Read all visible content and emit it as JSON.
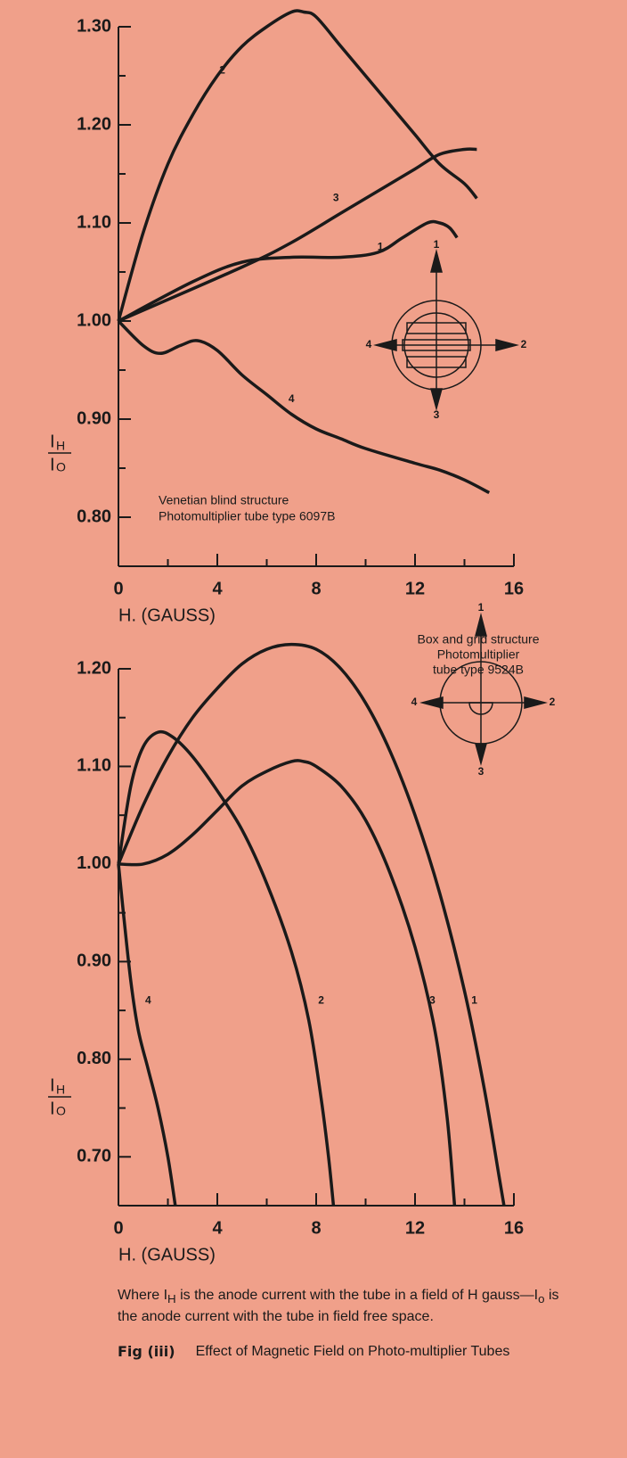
{
  "chart_data": [
    {
      "type": "line",
      "ylabel": {
        "numerator": {
          "base": "I",
          "sub": "H"
        },
        "denominator": {
          "base": "I",
          "sub": "O"
        }
      },
      "xlabel": "H. (GAUSS)",
      "annotation": [
        "Venetian blind structure",
        "Photomultiplier tube type 6097B"
      ],
      "inset_labels": [
        "1",
        "2",
        "3",
        "4"
      ],
      "xlim": [
        0,
        16
      ],
      "xticks": [
        0,
        4,
        8,
        12,
        16
      ],
      "xminor_ticks": [
        2,
        6,
        10,
        14
      ],
      "ylim": [
        0.75,
        1.3
      ],
      "yticks": [
        {
          "value": 0.8,
          "label": "0.80"
        },
        {
          "value": 0.9,
          "label": "0.90"
        },
        {
          "value": 1.0,
          "label": "1.00"
        },
        {
          "value": 1.1,
          "label": "1.10"
        },
        {
          "value": 1.2,
          "label": "1.20"
        },
        {
          "value": 1.3,
          "label": "1.30"
        }
      ],
      "yminor_ticks": [
        0.85,
        0.95,
        1.05,
        1.15,
        1.25
      ],
      "series": [
        {
          "name": "1",
          "color": "#1a1a1a",
          "label_at": [
            10.6,
            1.075
          ],
          "x": [
            0,
            3,
            5,
            7,
            9,
            10.5,
            11.5,
            12.5,
            13,
            13.4,
            13.7
          ],
          "values": [
            1.0,
            1.04,
            1.06,
            1.065,
            1.065,
            1.07,
            1.085,
            1.1,
            1.1,
            1.095,
            1.085
          ]
        },
        {
          "name": "2",
          "color": "#1a1a1a",
          "label_at": [
            4.2,
            1.255
          ],
          "x": [
            0,
            1,
            2,
            3,
            4,
            5,
            6,
            7,
            7.5,
            8,
            9,
            10,
            11,
            12,
            13,
            14,
            14.5
          ],
          "values": [
            1.0,
            1.09,
            1.16,
            1.21,
            1.25,
            1.28,
            1.3,
            1.315,
            1.315,
            1.31,
            1.28,
            1.25,
            1.22,
            1.19,
            1.16,
            1.14,
            1.125
          ]
        },
        {
          "name": "3",
          "color": "#1a1a1a",
          "label_at": [
            8.8,
            1.125
          ],
          "x": [
            0,
            5,
            7,
            9,
            11,
            12,
            13,
            14,
            14.5
          ],
          "values": [
            1.0,
            1.055,
            1.08,
            1.11,
            1.14,
            1.155,
            1.17,
            1.175,
            1.175
          ]
        },
        {
          "name": "4",
          "color": "#1a1a1a",
          "label_at": [
            7,
            0.92
          ],
          "x": [
            0,
            1,
            1.7,
            2.5,
            3.2,
            4,
            5,
            6,
            7,
            8,
            9,
            10,
            12,
            13,
            14,
            15
          ],
          "values": [
            1.0,
            0.975,
            0.967,
            0.975,
            0.98,
            0.97,
            0.945,
            0.925,
            0.905,
            0.89,
            0.88,
            0.87,
            0.855,
            0.848,
            0.838,
            0.825
          ]
        }
      ]
    },
    {
      "type": "line",
      "ylabel": {
        "numerator": {
          "base": "I",
          "sub": "H"
        },
        "denominator": {
          "base": "I",
          "sub": "O"
        }
      },
      "xlabel": "H. (GAUSS)",
      "annotation": [
        "Box and grid structure",
        "Photomultiplier",
        "tube type  9524B"
      ],
      "inset_labels": [
        "1",
        "2",
        "3",
        "4"
      ],
      "xlim": [
        0,
        16
      ],
      "xticks": [
        0,
        4,
        8,
        12,
        16
      ],
      "xminor_ticks": [
        2,
        6,
        10,
        14
      ],
      "ylim": [
        0.65,
        1.2
      ],
      "yticks": [
        {
          "value": 0.7,
          "label": "0.70"
        },
        {
          "value": 0.8,
          "label": "0.80"
        },
        {
          "value": 0.9,
          "label": "0.90"
        },
        {
          "value": 1.0,
          "label": "1.00"
        },
        {
          "value": 1.1,
          "label": "1.10"
        },
        {
          "value": 1.2,
          "label": "1.20"
        }
      ],
      "yminor_ticks": [
        0.75,
        0.85,
        0.95,
        1.05,
        1.15
      ],
      "series": [
        {
          "name": "1",
          "color": "#1a1a1a",
          "label_at": [
            14.4,
            0.86
          ],
          "x": [
            0,
            1,
            2,
            3,
            4,
            5,
            6,
            7,
            8,
            9,
            10,
            11,
            12,
            13,
            14,
            14.8,
            15.4,
            15.6
          ],
          "values": [
            1.0,
            1.06,
            1.11,
            1.15,
            1.18,
            1.205,
            1.22,
            1.225,
            1.22,
            1.2,
            1.165,
            1.115,
            1.05,
            0.97,
            0.87,
            0.77,
            0.68,
            0.65
          ]
        },
        {
          "name": "2",
          "color": "#1a1a1a",
          "label_at": [
            8.2,
            0.86
          ],
          "x": [
            0,
            0.5,
            1,
            1.6,
            2.2,
            3,
            4,
            5,
            6,
            7,
            7.7,
            8.2,
            8.5,
            8.7
          ],
          "values": [
            1.0,
            1.08,
            1.12,
            1.135,
            1.13,
            1.11,
            1.075,
            1.035,
            0.98,
            0.91,
            0.84,
            0.76,
            0.7,
            0.65
          ]
        },
        {
          "name": "3",
          "color": "#1a1a1a",
          "label_at": [
            12.7,
            0.86
          ],
          "x": [
            0,
            1,
            2,
            3,
            4,
            5,
            6,
            7,
            7.5,
            8,
            9,
            10,
            11,
            12,
            12.8,
            13.3,
            13.6
          ],
          "values": [
            1.0,
            1.0,
            1.01,
            1.03,
            1.055,
            1.08,
            1.095,
            1.105,
            1.105,
            1.1,
            1.08,
            1.045,
            0.99,
            0.915,
            0.83,
            0.74,
            0.65
          ]
        },
        {
          "name": "4",
          "color": "#1a1a1a",
          "label_at": [
            1.2,
            0.86
          ],
          "x": [
            0,
            0.2,
            0.5,
            0.8,
            1.2,
            1.6,
            2,
            2.3
          ],
          "values": [
            1.0,
            0.95,
            0.88,
            0.83,
            0.79,
            0.75,
            0.7,
            0.65
          ]
        }
      ]
    }
  ],
  "note": [
    "Where I",
    "H",
    " is the anode current with the tube in a field of H gauss—I",
    "o",
    " is the anode current with the tube in field free space."
  ],
  "caption": {
    "label": "Fig (iii)",
    "text": "Effect of Magnetic Field on Photo-multiplier Tubes"
  }
}
